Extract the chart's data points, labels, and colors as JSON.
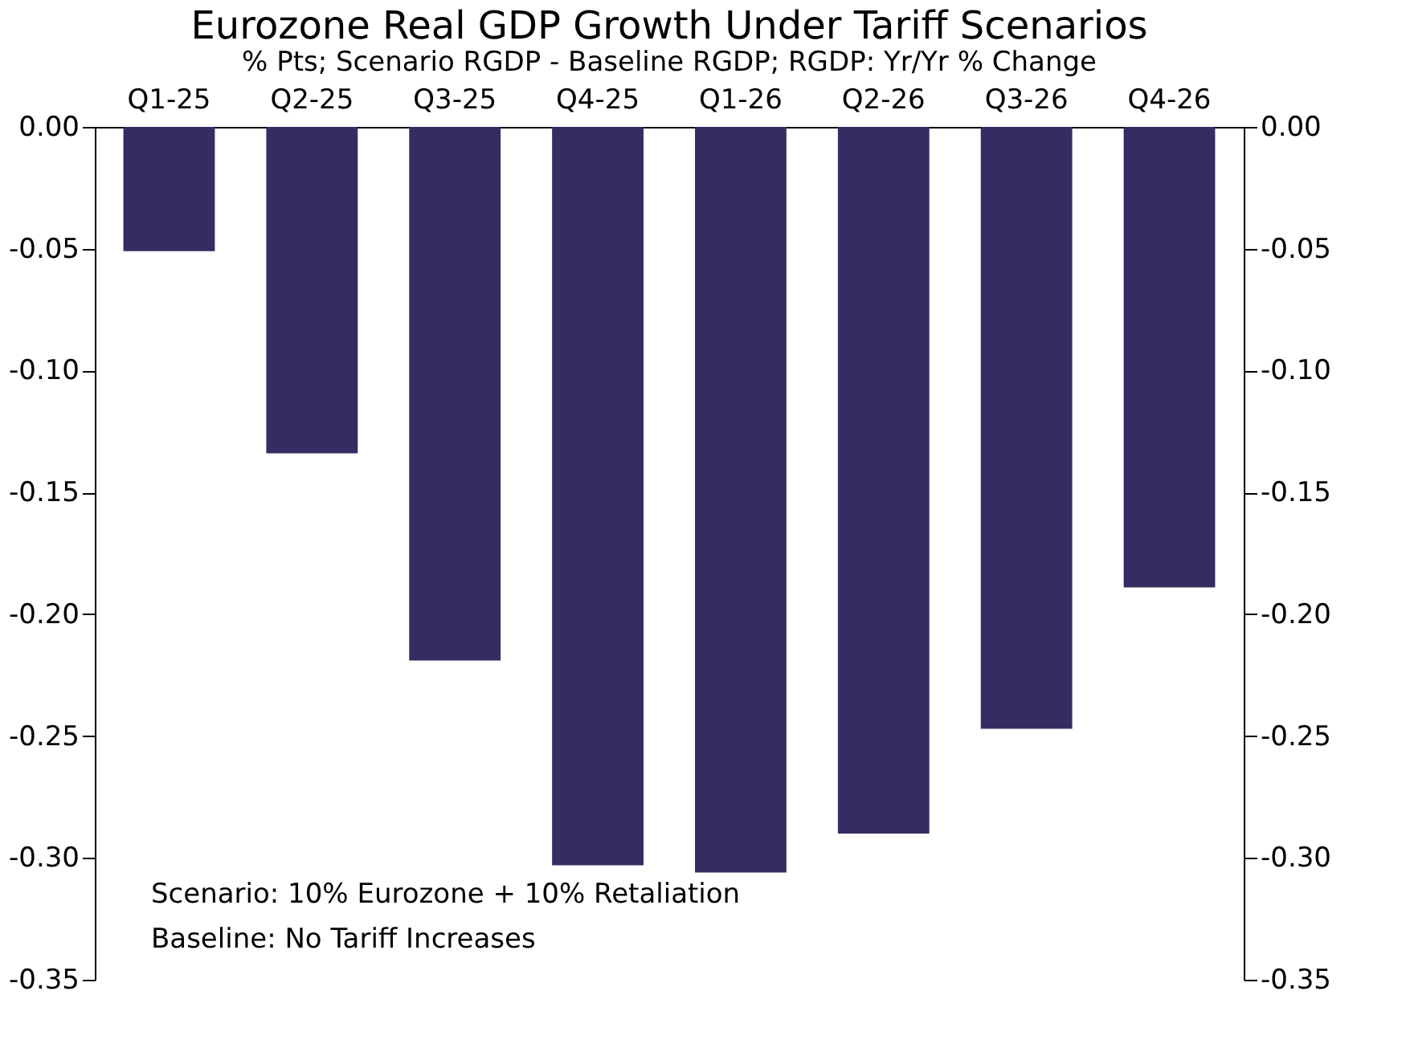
{
  "chart_data": {
    "type": "bar",
    "title": "Eurozone Real GDP Growth Under Tariff Scenarios",
    "subtitle": "% Pts; Scenario RGDP - Baseline RGDP; RGDP: Yr/Yr % Change",
    "categories": [
      "Q1-25",
      "Q2-25",
      "Q3-25",
      "Q4-25",
      "Q1-26",
      "Q2-26",
      "Q3-26",
      "Q4-26"
    ],
    "values": [
      -0.051,
      -0.134,
      -0.219,
      -0.303,
      -0.306,
      -0.29,
      -0.247,
      -0.189
    ],
    "color": "#352c63",
    "ylim": [
      -0.35,
      0
    ],
    "yticks": [
      {
        "value": 0,
        "label": "0.00"
      },
      {
        "value": -0.05,
        "label": "-0.05"
      },
      {
        "value": -0.1,
        "label": "-0.10"
      },
      {
        "value": -0.15,
        "label": "-0.15"
      },
      {
        "value": -0.2,
        "label": "-0.20"
      },
      {
        "value": -0.25,
        "label": "-0.25"
      },
      {
        "value": -0.3,
        "label": "-0.30"
      },
      {
        "value": -0.35,
        "label": "-0.35"
      }
    ],
    "y2lim": [
      -0.35,
      0
    ],
    "y2ticks": [
      {
        "value": 0,
        "label": "0.00"
      },
      {
        "value": -0.05,
        "label": "-0.05"
      },
      {
        "value": -0.1,
        "label": "-0.10"
      },
      {
        "value": -0.15,
        "label": "-0.15"
      },
      {
        "value": -0.2,
        "label": "-0.20"
      },
      {
        "value": -0.25,
        "label": "-0.25"
      },
      {
        "value": -0.3,
        "label": "-0.30"
      },
      {
        "value": -0.35,
        "label": "-0.35"
      }
    ],
    "annotations": [
      "Scenario: 10% Eurozone + 10% Retaliation",
      "Baseline: No Tariff Increases"
    ]
  }
}
